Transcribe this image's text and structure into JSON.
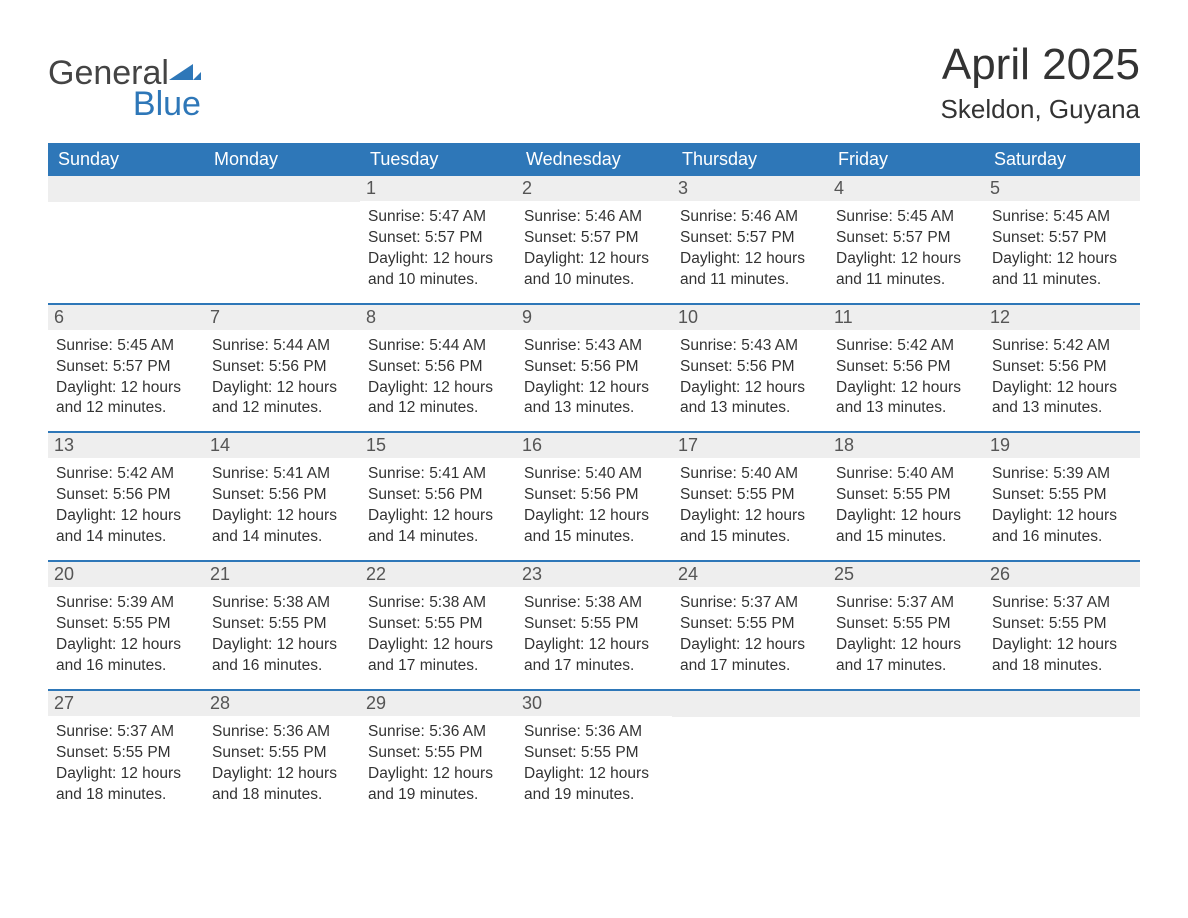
{
  "brand": {
    "word1": "General",
    "word2": "Blue",
    "text_color": "#444444",
    "accent_color": "#2e77b8"
  },
  "month_title": "April 2025",
  "location": "Skeldon, Guyana",
  "colors": {
    "header_bg": "#2e77b8",
    "header_text": "#ffffff",
    "daynum_bg": "#eeeeee",
    "daynum_text": "#555555",
    "body_text": "#333333",
    "page_bg": "#ffffff",
    "week_divider": "#2e77b8"
  },
  "typography": {
    "month_title_fontsize": 44,
    "location_fontsize": 26,
    "dayheader_fontsize": 18,
    "daynum_fontsize": 18,
    "details_fontsize": 15.5
  },
  "day_headers": [
    "Sunday",
    "Monday",
    "Tuesday",
    "Wednesday",
    "Thursday",
    "Friday",
    "Saturday"
  ],
  "labels": {
    "sunrise": "Sunrise:",
    "sunset": "Sunset:",
    "daylight": "Daylight:"
  },
  "weeks": [
    [
      null,
      null,
      {
        "n": "1",
        "sunrise": "5:47 AM",
        "sunset": "5:57 PM",
        "daylight": "12 hours and 10 minutes."
      },
      {
        "n": "2",
        "sunrise": "5:46 AM",
        "sunset": "5:57 PM",
        "daylight": "12 hours and 10 minutes."
      },
      {
        "n": "3",
        "sunrise": "5:46 AM",
        "sunset": "5:57 PM",
        "daylight": "12 hours and 11 minutes."
      },
      {
        "n": "4",
        "sunrise": "5:45 AM",
        "sunset": "5:57 PM",
        "daylight": "12 hours and 11 minutes."
      },
      {
        "n": "5",
        "sunrise": "5:45 AM",
        "sunset": "5:57 PM",
        "daylight": "12 hours and 11 minutes."
      }
    ],
    [
      {
        "n": "6",
        "sunrise": "5:45 AM",
        "sunset": "5:57 PM",
        "daylight": "12 hours and 12 minutes."
      },
      {
        "n": "7",
        "sunrise": "5:44 AM",
        "sunset": "5:56 PM",
        "daylight": "12 hours and 12 minutes."
      },
      {
        "n": "8",
        "sunrise": "5:44 AM",
        "sunset": "5:56 PM",
        "daylight": "12 hours and 12 minutes."
      },
      {
        "n": "9",
        "sunrise": "5:43 AM",
        "sunset": "5:56 PM",
        "daylight": "12 hours and 13 minutes."
      },
      {
        "n": "10",
        "sunrise": "5:43 AM",
        "sunset": "5:56 PM",
        "daylight": "12 hours and 13 minutes."
      },
      {
        "n": "11",
        "sunrise": "5:42 AM",
        "sunset": "5:56 PM",
        "daylight": "12 hours and 13 minutes."
      },
      {
        "n": "12",
        "sunrise": "5:42 AM",
        "sunset": "5:56 PM",
        "daylight": "12 hours and 13 minutes."
      }
    ],
    [
      {
        "n": "13",
        "sunrise": "5:42 AM",
        "sunset": "5:56 PM",
        "daylight": "12 hours and 14 minutes."
      },
      {
        "n": "14",
        "sunrise": "5:41 AM",
        "sunset": "5:56 PM",
        "daylight": "12 hours and 14 minutes."
      },
      {
        "n": "15",
        "sunrise": "5:41 AM",
        "sunset": "5:56 PM",
        "daylight": "12 hours and 14 minutes."
      },
      {
        "n": "16",
        "sunrise": "5:40 AM",
        "sunset": "5:56 PM",
        "daylight": "12 hours and 15 minutes."
      },
      {
        "n": "17",
        "sunrise": "5:40 AM",
        "sunset": "5:55 PM",
        "daylight": "12 hours and 15 minutes."
      },
      {
        "n": "18",
        "sunrise": "5:40 AM",
        "sunset": "5:55 PM",
        "daylight": "12 hours and 15 minutes."
      },
      {
        "n": "19",
        "sunrise": "5:39 AM",
        "sunset": "5:55 PM",
        "daylight": "12 hours and 16 minutes."
      }
    ],
    [
      {
        "n": "20",
        "sunrise": "5:39 AM",
        "sunset": "5:55 PM",
        "daylight": "12 hours and 16 minutes."
      },
      {
        "n": "21",
        "sunrise": "5:38 AM",
        "sunset": "5:55 PM",
        "daylight": "12 hours and 16 minutes."
      },
      {
        "n": "22",
        "sunrise": "5:38 AM",
        "sunset": "5:55 PM",
        "daylight": "12 hours and 17 minutes."
      },
      {
        "n": "23",
        "sunrise": "5:38 AM",
        "sunset": "5:55 PM",
        "daylight": "12 hours and 17 minutes."
      },
      {
        "n": "24",
        "sunrise": "5:37 AM",
        "sunset": "5:55 PM",
        "daylight": "12 hours and 17 minutes."
      },
      {
        "n": "25",
        "sunrise": "5:37 AM",
        "sunset": "5:55 PM",
        "daylight": "12 hours and 17 minutes."
      },
      {
        "n": "26",
        "sunrise": "5:37 AM",
        "sunset": "5:55 PM",
        "daylight": "12 hours and 18 minutes."
      }
    ],
    [
      {
        "n": "27",
        "sunrise": "5:37 AM",
        "sunset": "5:55 PM",
        "daylight": "12 hours and 18 minutes."
      },
      {
        "n": "28",
        "sunrise": "5:36 AM",
        "sunset": "5:55 PM",
        "daylight": "12 hours and 18 minutes."
      },
      {
        "n": "29",
        "sunrise": "5:36 AM",
        "sunset": "5:55 PM",
        "daylight": "12 hours and 19 minutes."
      },
      {
        "n": "30",
        "sunrise": "5:36 AM",
        "sunset": "5:55 PM",
        "daylight": "12 hours and 19 minutes."
      },
      null,
      null,
      null
    ]
  ]
}
